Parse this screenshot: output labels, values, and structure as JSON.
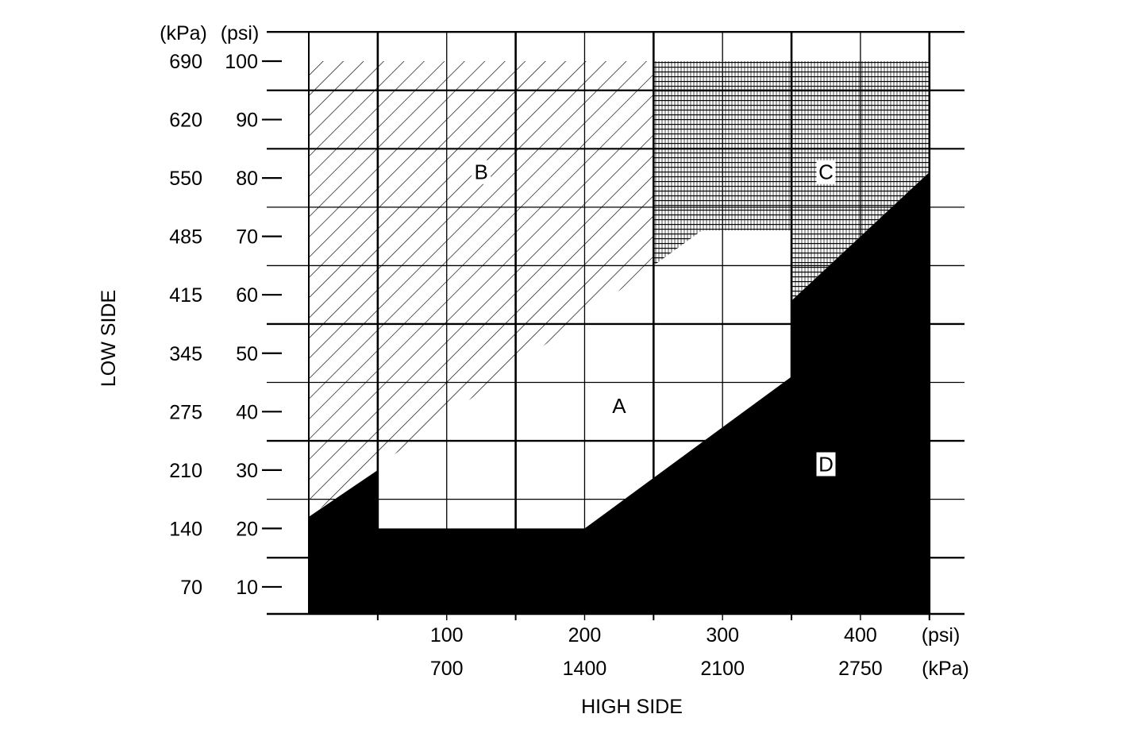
{
  "chart_data": {
    "type": "area",
    "y_axis": {
      "label": "LOW SIDE",
      "unit_kpa": "(kPa)",
      "unit_psi": "(psi)",
      "ticks": [
        {
          "psi": 100,
          "kpa": "690",
          "psi_label": "100"
        },
        {
          "psi": 90,
          "kpa": "620",
          "psi_label": "90"
        },
        {
          "psi": 80,
          "kpa": "550",
          "psi_label": "80"
        },
        {
          "psi": 70,
          "kpa": "485",
          "psi_label": "70"
        },
        {
          "psi": 60,
          "kpa": "415",
          "psi_label": "60"
        },
        {
          "psi": 50,
          "kpa": "345",
          "psi_label": "50"
        },
        {
          "psi": 40,
          "kpa": "275",
          "psi_label": "40"
        },
        {
          "psi": 30,
          "kpa": "210",
          "psi_label": "30"
        },
        {
          "psi": 20,
          "kpa": "140",
          "psi_label": "20"
        },
        {
          "psi": 10,
          "kpa": "70",
          "psi_label": "10"
        }
      ]
    },
    "x_axis": {
      "label": "HIGH SIDE",
      "unit_psi": "(psi)",
      "unit_kpa": "(kPa)",
      "ticks": [
        {
          "psi": 100,
          "psi_label": "100",
          "kpa_label": "700"
        },
        {
          "psi": 200,
          "psi_label": "200",
          "kpa_label": "1400"
        },
        {
          "psi": 300,
          "psi_label": "300",
          "kpa_label": "2100"
        },
        {
          "psi": 400,
          "psi_label": "400",
          "kpa_label": "2750"
        }
      ]
    },
    "regions": [
      {
        "name": "A",
        "fill": "white",
        "points_psi": [
          [
            50,
            20
          ],
          [
            200,
            20
          ],
          [
            350,
            46
          ],
          [
            350,
            71
          ],
          [
            285,
            71
          ],
          [
            50,
            30
          ]
        ]
      },
      {
        "name": "B",
        "fill": "diagonal-hatch",
        "points_psi": [
          [
            0,
            100
          ],
          [
            250,
            100
          ],
          [
            250,
            65
          ],
          [
            0,
            22
          ]
        ]
      },
      {
        "name": "C",
        "fill": "dense-grid",
        "points_psi": [
          [
            250,
            100
          ],
          [
            450,
            100
          ],
          [
            450,
            81
          ],
          [
            350,
            59
          ],
          [
            350,
            71
          ],
          [
            285,
            71
          ],
          [
            250,
            65
          ]
        ]
      },
      {
        "name": "D",
        "fill": "black",
        "points_psi": [
          [
            0,
            5
          ],
          [
            450,
            5
          ],
          [
            450,
            81
          ],
          [
            350,
            59
          ],
          [
            350,
            46
          ],
          [
            200,
            20
          ],
          [
            50,
            20
          ],
          [
            50,
            30
          ],
          [
            0,
            22
          ]
        ]
      }
    ],
    "colors": {
      "ink": "#000000",
      "paper": "#ffffff"
    }
  }
}
